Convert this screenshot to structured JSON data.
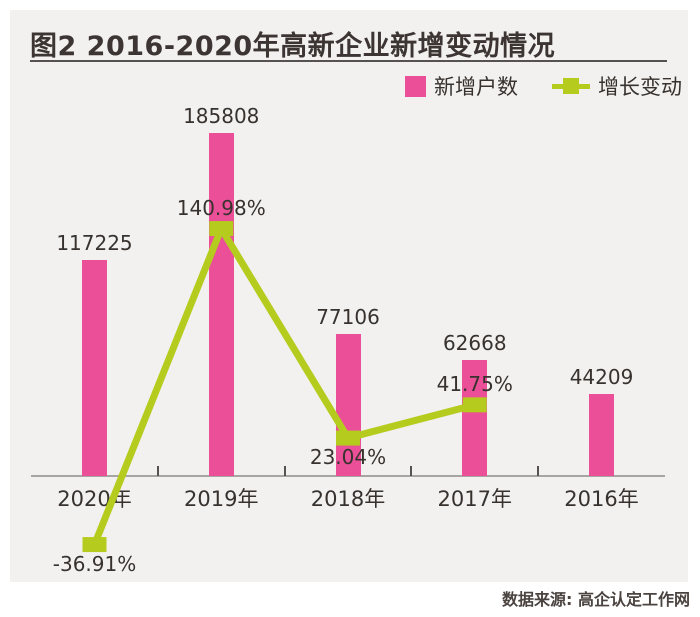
{
  "page": {
    "title": "图2  2016-2020年高新企业新增变动情况",
    "source": "数据来源: 高企认定工作网"
  },
  "legend": {
    "items": [
      {
        "label": "新增户数"
      },
      {
        "label": "增长变动"
      }
    ]
  },
  "colors": {
    "bar": "#ea4f98",
    "line": "#b5cc1f",
    "panel_bg": "#f2f1ef",
    "axis": "#a8a4a2",
    "tick": "#575150",
    "text": "#38322f",
    "title_text": "#3c3533",
    "source_text": "#4a4340"
  },
  "chart_data": {
    "type": "bar",
    "subtype": "bar+line combo",
    "title": "图2  2016-2020年高新企业新增变动情况",
    "categories": [
      "2020年",
      "2019年",
      "2018年",
      "2017年",
      "2016年"
    ],
    "series": [
      {
        "name": "新增户数",
        "type": "bar",
        "color": "#ea4f98",
        "values": [
          117225,
          185808,
          77106,
          62668,
          44209
        ],
        "display_values": [
          "117225",
          "185808",
          "77106",
          "62668",
          "44209"
        ]
      },
      {
        "name": "增长变动",
        "type": "line",
        "color": "#b5cc1f",
        "unit": "%",
        "values": [
          -36.91,
          140.98,
          23.04,
          41.75,
          null
        ],
        "display_values": [
          "-36.91%",
          "140.98%",
          "23.04%",
          "41.75%",
          null
        ],
        "value_label_side": [
          "below",
          "above",
          "below",
          "above",
          null
        ]
      }
    ],
    "xlabel": "",
    "ylabel": "",
    "y_axis_visible": false,
    "grid": false,
    "value_labels_shown": true,
    "legend_position": "top-right",
    "source": "数据来源: 高企认定工作网"
  }
}
